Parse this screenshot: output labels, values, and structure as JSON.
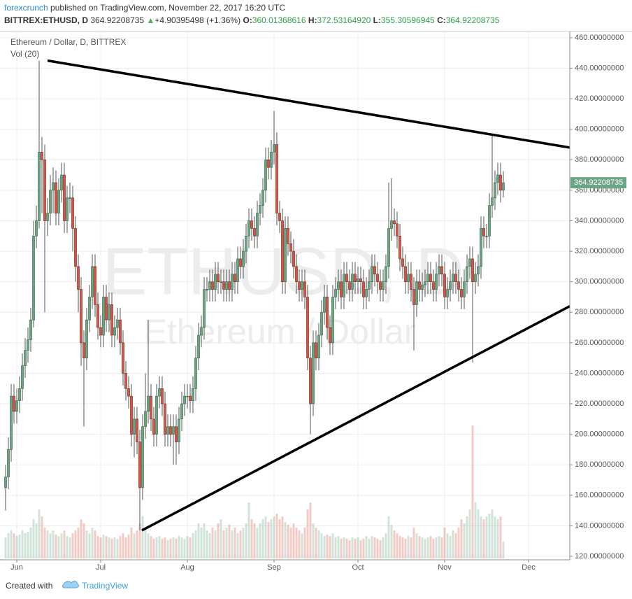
{
  "header": {
    "publisher": "forexcrunch",
    "published": "published on TradingView.com, November 22, 2017 16:20 UTC",
    "symbol": "BITTREX:ETHUSD, D",
    "last": "364.92208735",
    "arrow": "▲",
    "change": "+4.90395498 (+1.36%)",
    "o_label": "O:",
    "o": "360.01368616",
    "h_label": "H:",
    "h": "372.53164920",
    "l_label": "L:",
    "l": "355.30596945",
    "c_label": "C:",
    "c": "364.92208735"
  },
  "footer": {
    "created": "Created with",
    "brand": "TradingView"
  },
  "chart_data": {
    "type": "candlestick",
    "legend_title": "Ethereum / Dollar, D, BITTREX",
    "volume_label": "Vol (20)",
    "watermark": "ETHUSD, D",
    "watermark_sub": "Ethereum / Dollar",
    "up_color": "#6ba583",
    "down_color": "#d75442",
    "wick_color": "#555555",
    "grid": true,
    "last_price": {
      "value": 364.92208735,
      "label": "364.92208735"
    },
    "xlim": [
      -2,
      201.75
    ],
    "ylim": [
      117.7,
      464.1
    ],
    "xticks": [
      {
        "value": 4,
        "label": "Jun"
      },
      {
        "value": 34,
        "label": "Jul"
      },
      {
        "value": 65,
        "label": "Aug"
      },
      {
        "value": 96,
        "label": "Sep"
      },
      {
        "value": 126,
        "label": "Oct"
      },
      {
        "value": 157,
        "label": "Nov"
      },
      {
        "value": 187,
        "label": "Dec"
      }
    ],
    "yticks": [
      {
        "value": 120,
        "label": "120.00000000"
      },
      {
        "value": 140,
        "label": "140.00000000"
      },
      {
        "value": 160,
        "label": "160.00000000"
      },
      {
        "value": 180,
        "label": "180.00000000"
      },
      {
        "value": 200,
        "label": "200.00000000"
      },
      {
        "value": 220,
        "label": "220.00000000"
      },
      {
        "value": 240,
        "label": "240.00000000"
      },
      {
        "value": 260,
        "label": "260.00000000"
      },
      {
        "value": 280,
        "label": "280.00000000"
      },
      {
        "value": 300,
        "label": "300.00000000"
      },
      {
        "value": 320,
        "label": "320.00000000"
      },
      {
        "value": 340,
        "label": "340.00000000"
      },
      {
        "value": 360,
        "label": "360.00000000"
      },
      {
        "value": 380,
        "label": "380.00000000"
      },
      {
        "value": 400,
        "label": "400.00000000"
      },
      {
        "value": 420,
        "label": "420.00000000"
      },
      {
        "value": 440,
        "label": "440.00000000"
      },
      {
        "value": 460,
        "label": "460.00000000"
      }
    ],
    "trendlines": [
      {
        "x": [
          15,
          201.75
        ],
        "y": [
          445,
          388
        ]
      },
      {
        "x": [
          48.75,
          201.75
        ],
        "y": [
          137,
          284
        ]
      }
    ],
    "open": [
      165,
      172,
      190,
      225,
      215,
      222,
      230,
      245,
      255,
      262,
      275,
      330,
      340,
      385,
      380,
      340,
      345,
      360,
      365,
      345,
      360,
      370,
      340,
      355,
      355,
      335,
      310,
      295,
      260,
      250,
      275,
      290,
      310,
      285,
      270,
      265,
      290,
      275,
      285,
      265,
      270,
      275,
      260,
      240,
      230,
      225,
      200,
      210,
      195,
      165,
      205,
      215,
      225,
      210,
      200,
      225,
      230,
      220,
      200,
      205,
      200,
      205,
      195,
      210,
      220,
      225,
      225,
      222,
      230,
      250,
      265,
      270,
      295,
      295,
      300,
      295,
      305,
      300,
      300,
      295,
      300,
      295,
      305,
      300,
      315,
      310,
      320,
      330,
      340,
      335,
      330,
      345,
      350,
      360,
      380,
      375,
      385,
      390,
      345,
      340,
      300,
      335,
      325,
      320,
      310,
      300,
      295,
      300,
      290,
      250,
      220,
      260,
      250,
      265,
      280,
      290,
      270,
      260,
      290,
      295,
      300,
      290,
      305,
      300,
      295,
      305,
      300,
      302,
      300,
      290,
      295,
      300,
      310,
      305,
      300,
      295,
      300,
      310,
      335,
      340,
      338,
      330,
      315,
      310,
      300,
      305,
      295,
      285,
      300,
      295,
      298,
      300,
      305,
      300,
      295,
      305,
      310,
      305,
      290,
      295,
      300,
      305,
      300,
      295,
      290,
      300,
      310,
      315,
      300,
      305,
      310,
      335,
      330,
      330,
      350,
      355,
      365,
      370,
      360.01368616
    ],
    "high": [
      180,
      198,
      233,
      233,
      230,
      238,
      253,
      263,
      270,
      283,
      340,
      350,
      445,
      395,
      390,
      355,
      370,
      375,
      373,
      368,
      378,
      378,
      363,
      365,
      363,
      343,
      318,
      303,
      268,
      283,
      298,
      318,
      318,
      293,
      278,
      298,
      298,
      293,
      293,
      278,
      283,
      283,
      268,
      248,
      238,
      233,
      218,
      218,
      203,
      213,
      240,
      275,
      233,
      218,
      233,
      238,
      238,
      228,
      213,
      213,
      213,
      213,
      218,
      228,
      233,
      233,
      233,
      238,
      258,
      273,
      278,
      303,
      303,
      308,
      308,
      313,
      313,
      308,
      308,
      308,
      308,
      313,
      313,
      323,
      323,
      328,
      338,
      348,
      348,
      343,
      353,
      358,
      368,
      388,
      388,
      393,
      412,
      398,
      353,
      348,
      343,
      343,
      333,
      328,
      318,
      308,
      308,
      308,
      298,
      258,
      268,
      268,
      273,
      288,
      298,
      298,
      278,
      298,
      303,
      308,
      308,
      313,
      313,
      308,
      313,
      313,
      310,
      310,
      308,
      303,
      308,
      318,
      318,
      313,
      308,
      308,
      318,
      365,
      368,
      348,
      346,
      338,
      323,
      318,
      313,
      313,
      303,
      308,
      308,
      306,
      308,
      313,
      313,
      308,
      313,
      318,
      318,
      313,
      303,
      308,
      313,
      313,
      308,
      303,
      308,
      318,
      323,
      323,
      313,
      318,
      343,
      343,
      338,
      358,
      397,
      373,
      378,
      378,
      372.5316492
    ],
    "low": [
      150,
      164,
      182,
      207,
      207,
      214,
      222,
      237,
      247,
      254,
      270,
      322,
      335,
      345,
      280,
      330,
      337,
      345,
      337,
      337,
      352,
      332,
      332,
      345,
      320,
      300,
      280,
      245,
      205,
      242,
      267,
      282,
      277,
      262,
      257,
      257,
      267,
      267,
      257,
      257,
      262,
      252,
      232,
      222,
      217,
      192,
      185,
      187,
      137,
      157,
      197,
      207,
      202,
      192,
      192,
      217,
      212,
      192,
      192,
      192,
      180,
      180,
      187,
      202,
      212,
      217,
      214,
      214,
      222,
      242,
      257,
      262,
      287,
      287,
      287,
      287,
      292,
      292,
      287,
      287,
      287,
      287,
      292,
      292,
      302,
      302,
      312,
      322,
      327,
      322,
      322,
      337,
      342,
      352,
      367,
      367,
      377,
      337,
      332,
      292,
      292,
      317,
      312,
      302,
      292,
      287,
      287,
      282,
      242,
      200,
      212,
      242,
      242,
      257,
      272,
      262,
      252,
      252,
      282,
      287,
      282,
      282,
      292,
      287,
      287,
      292,
      292,
      292,
      282,
      282,
      287,
      292,
      297,
      292,
      287,
      287,
      292,
      302,
      327,
      330,
      322,
      307,
      302,
      292,
      292,
      287,
      255,
      277,
      287,
      287,
      290,
      292,
      292,
      287,
      287,
      297,
      297,
      282,
      282,
      287,
      292,
      292,
      287,
      282,
      282,
      292,
      302,
      247,
      292,
      297,
      302,
      322,
      322,
      322,
      342,
      347,
      357,
      352,
      355.30596945
    ],
    "close": [
      172,
      190,
      225,
      215,
      222,
      230,
      245,
      255,
      262,
      275,
      330,
      340,
      385,
      380,
      340,
      345,
      360,
      365,
      345,
      360,
      370,
      340,
      355,
      355,
      335,
      310,
      295,
      260,
      250,
      275,
      290,
      310,
      285,
      270,
      265,
      290,
      275,
      285,
      265,
      270,
      275,
      260,
      240,
      230,
      225,
      200,
      210,
      195,
      165,
      205,
      215,
      225,
      210,
      200,
      225,
      230,
      220,
      200,
      205,
      200,
      205,
      195,
      210,
      220,
      225,
      225,
      222,
      230,
      250,
      265,
      270,
      295,
      295,
      300,
      295,
      305,
      300,
      300,
      295,
      300,
      295,
      305,
      300,
      315,
      310,
      320,
      330,
      340,
      335,
      330,
      345,
      350,
      360,
      380,
      375,
      385,
      390,
      345,
      340,
      300,
      335,
      325,
      320,
      310,
      300,
      295,
      300,
      290,
      250,
      220,
      260,
      250,
      265,
      280,
      290,
      270,
      260,
      290,
      295,
      300,
      290,
      305,
      300,
      295,
      305,
      300,
      302,
      300,
      290,
      295,
      300,
      310,
      305,
      300,
      295,
      300,
      310,
      335,
      340,
      338,
      330,
      315,
      310,
      300,
      305,
      295,
      285,
      300,
      295,
      298,
      300,
      305,
      300,
      295,
      305,
      310,
      305,
      290,
      295,
      300,
      305,
      300,
      295,
      290,
      300,
      310,
      315,
      300,
      305,
      310,
      335,
      330,
      330,
      350,
      355,
      365,
      370,
      360.01368616,
      364.92208735
    ],
    "volume": [
      15,
      18,
      20,
      18,
      16,
      17,
      20,
      18,
      19,
      22,
      28,
      25,
      35,
      30,
      22,
      20,
      18,
      20,
      17,
      16,
      18,
      20,
      16,
      15,
      18,
      20,
      22,
      28,
      25,
      20,
      18,
      22,
      20,
      16,
      15,
      17,
      16,
      15,
      14,
      15,
      14,
      16,
      18,
      15,
      17,
      22,
      18,
      20,
      25,
      30,
      22,
      18,
      16,
      14,
      15,
      16,
      14,
      15,
      13,
      14,
      15,
      14,
      16,
      15,
      14,
      16,
      15,
      18,
      20,
      25,
      22,
      25,
      20,
      18,
      22,
      20,
      25,
      28,
      20,
      22,
      24,
      20,
      22,
      18,
      20,
      22,
      25,
      40,
      28,
      25,
      22,
      25,
      28,
      30,
      26,
      28,
      30,
      32,
      28,
      30,
      26,
      24,
      22,
      25,
      22,
      20,
      18,
      22,
      35,
      40,
      25,
      22,
      20,
      18,
      16,
      17,
      16,
      18,
      15,
      16,
      14,
      15,
      14,
      13,
      15,
      14,
      15,
      13,
      14,
      16,
      14,
      16,
      15,
      14,
      13,
      15,
      18,
      30,
      24,
      20,
      18,
      16,
      15,
      14,
      16,
      15,
      22,
      18,
      16,
      15,
      14,
      15,
      16,
      14,
      15,
      16,
      15,
      22,
      18,
      16,
      20,
      18,
      22,
      28,
      25,
      30,
      35,
      95,
      40,
      35,
      30,
      28,
      30,
      32,
      35,
      30,
      28,
      30,
      12
    ]
  }
}
